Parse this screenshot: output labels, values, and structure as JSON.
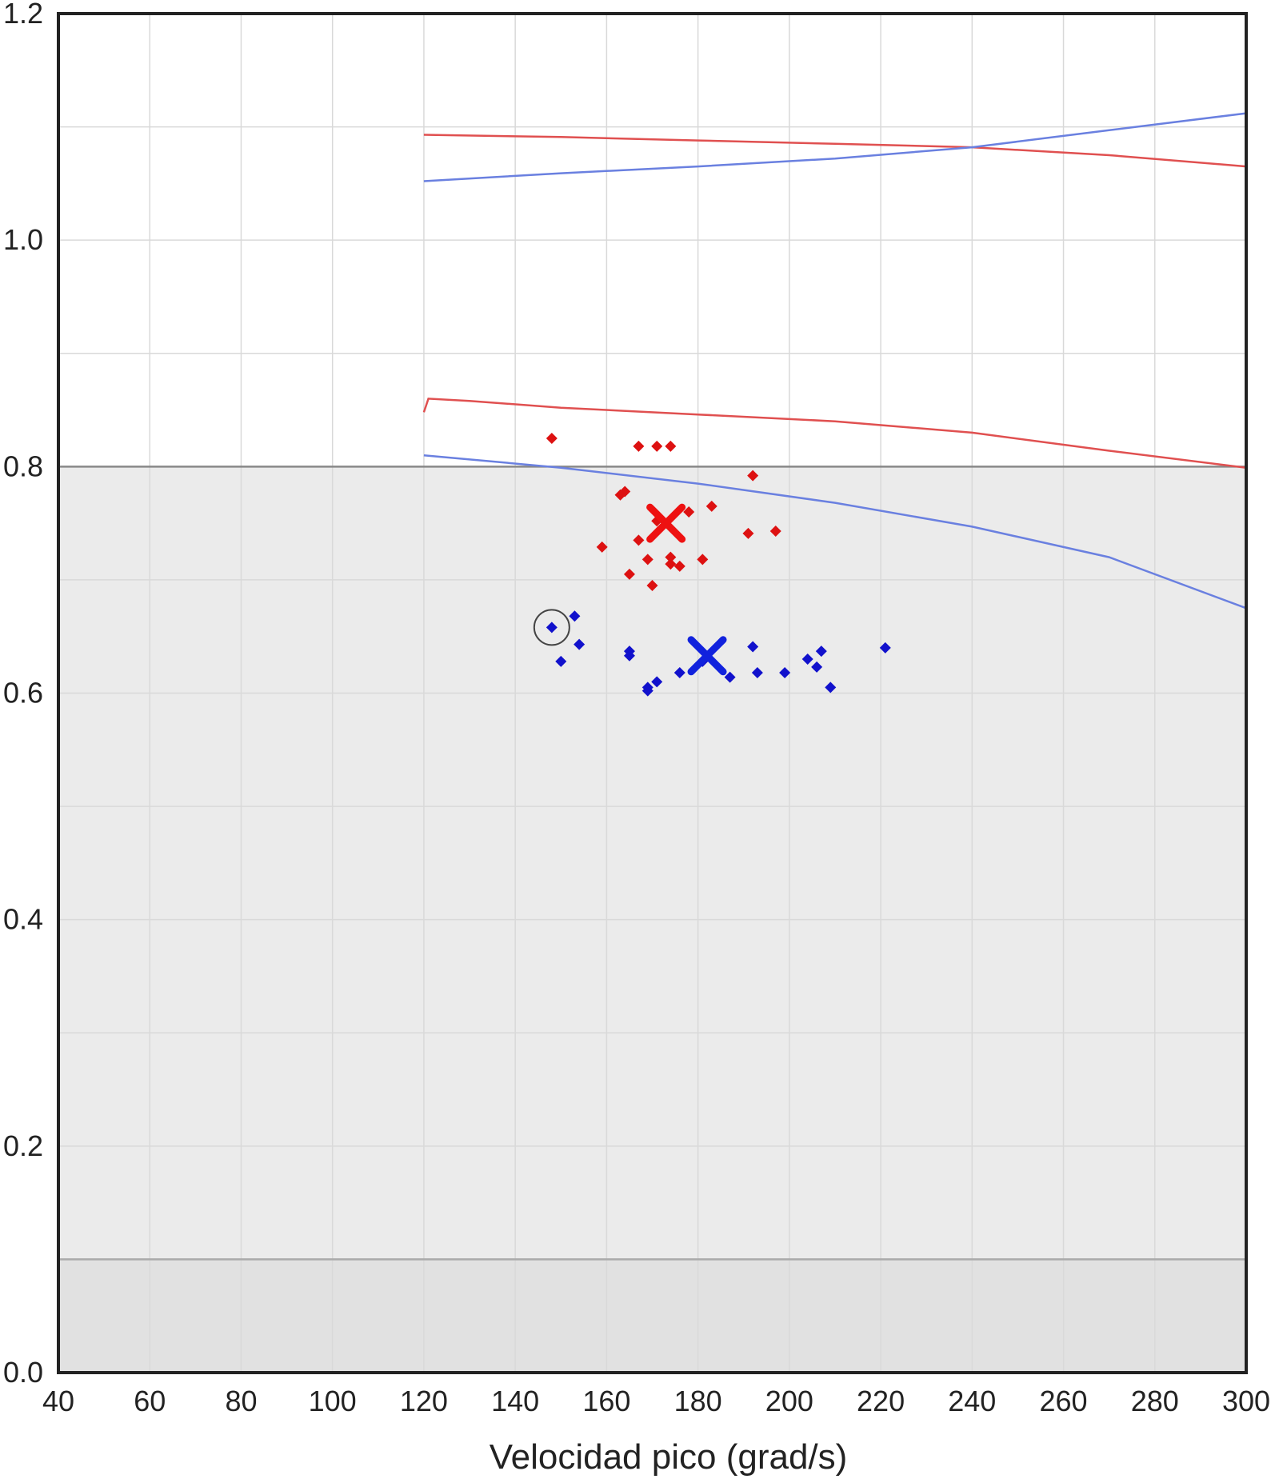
{
  "chart_data": {
    "type": "scatter",
    "title": "",
    "xlabel": "Velocidad pico (grad/s)",
    "ylabel": "",
    "xlim": [
      40,
      300
    ],
    "ylim": [
      0.0,
      1.2
    ],
    "x_ticks": [
      40,
      60,
      80,
      100,
      120,
      140,
      160,
      180,
      200,
      220,
      240,
      260,
      280,
      300
    ],
    "x_tick_labels": [
      "40",
      "60",
      "80",
      "100",
      "120",
      "140",
      "160",
      "180",
      "200",
      "220",
      "240",
      "260",
      "280",
      "300"
    ],
    "y_ticks": [
      0.0,
      0.2,
      0.4,
      0.6,
      0.8,
      1.0,
      1.2
    ],
    "y_tick_labels": [
      "0.0",
      "0.2",
      "0.4",
      "0.6",
      "0.8",
      "1.0",
      "1.2"
    ],
    "grid": true,
    "legend": "none",
    "shaded_bands": [
      {
        "y_from": 0.1,
        "y_to": 0.8,
        "color": "#ebebeb"
      },
      {
        "y_from": 0.0,
        "y_to": 0.1,
        "color": "#e1e1e1"
      }
    ],
    "band_lines": [
      {
        "y": 0.8,
        "color": "#888888"
      },
      {
        "y": 0.1,
        "color": "#aaaaaa"
      }
    ],
    "series": [
      {
        "kind": "points",
        "color": "#dd1111",
        "points": [
          [
            148,
            0.825
          ],
          [
            167,
            0.818
          ],
          [
            171,
            0.818
          ],
          [
            174,
            0.818
          ],
          [
            192,
            0.792
          ],
          [
            164,
            0.778
          ],
          [
            163,
            0.775
          ],
          [
            183,
            0.765
          ],
          [
            178,
            0.76
          ],
          [
            171,
            0.752
          ],
          [
            167,
            0.735
          ],
          [
            191,
            0.741
          ],
          [
            197,
            0.743
          ],
          [
            159,
            0.729
          ],
          [
            169,
            0.718
          ],
          [
            174,
            0.714
          ],
          [
            176,
            0.712
          ],
          [
            181,
            0.718
          ],
          [
            174,
            0.72
          ],
          [
            165,
            0.705
          ],
          [
            170,
            0.695
          ]
        ]
      },
      {
        "kind": "points",
        "color": "#1111cc",
        "points": [
          [
            148,
            0.658
          ],
          [
            153,
            0.668
          ],
          [
            154,
            0.643
          ],
          [
            150,
            0.628
          ],
          [
            165,
            0.637
          ],
          [
            165,
            0.633
          ],
          [
            181,
            0.628
          ],
          [
            176,
            0.618
          ],
          [
            187,
            0.614
          ],
          [
            192,
            0.641
          ],
          [
            193,
            0.618
          ],
          [
            199,
            0.618
          ],
          [
            204,
            0.63
          ],
          [
            206,
            0.623
          ],
          [
            207,
            0.637
          ],
          [
            209,
            0.605
          ],
          [
            221,
            0.64
          ],
          [
            169,
            0.605
          ],
          [
            171,
            0.61
          ],
          [
            169,
            0.602
          ]
        ]
      },
      {
        "kind": "mean",
        "color": "#ee1111",
        "points": [
          [
            173,
            0.75
          ]
        ]
      },
      {
        "kind": "mean",
        "color": "#1122dd",
        "points": [
          [
            182,
            0.633
          ]
        ]
      },
      {
        "kind": "line",
        "color": "#e05050",
        "points": [
          [
            120,
            1.093
          ],
          [
            150,
            1.091
          ],
          [
            180,
            1.088
          ],
          [
            210,
            1.085
          ],
          [
            240,
            1.082
          ],
          [
            270,
            1.075
          ],
          [
            300,
            1.065
          ]
        ]
      },
      {
        "kind": "line",
        "color": "#6a80e0",
        "points": [
          [
            120,
            1.052
          ],
          [
            150,
            1.059
          ],
          [
            180,
            1.065
          ],
          [
            210,
            1.072
          ],
          [
            240,
            1.082
          ],
          [
            270,
            1.097
          ],
          [
            300,
            1.112
          ]
        ]
      },
      {
        "kind": "line",
        "color": "#e05050",
        "points": [
          [
            120,
            0.848
          ],
          [
            121,
            0.86
          ],
          [
            130,
            0.858
          ],
          [
            150,
            0.852
          ],
          [
            180,
            0.846
          ],
          [
            210,
            0.84
          ],
          [
            240,
            0.83
          ],
          [
            270,
            0.814
          ],
          [
            300,
            0.799
          ]
        ]
      },
      {
        "kind": "line",
        "color": "#6a80e0",
        "points": [
          [
            120,
            0.81
          ],
          [
            150,
            0.799
          ],
          [
            180,
            0.785
          ],
          [
            210,
            0.768
          ],
          [
            240,
            0.747
          ],
          [
            270,
            0.72
          ],
          [
            300,
            0.675
          ]
        ]
      }
    ],
    "highlighted_point": {
      "x": 148,
      "y": 0.658,
      "color": "#444444"
    }
  }
}
